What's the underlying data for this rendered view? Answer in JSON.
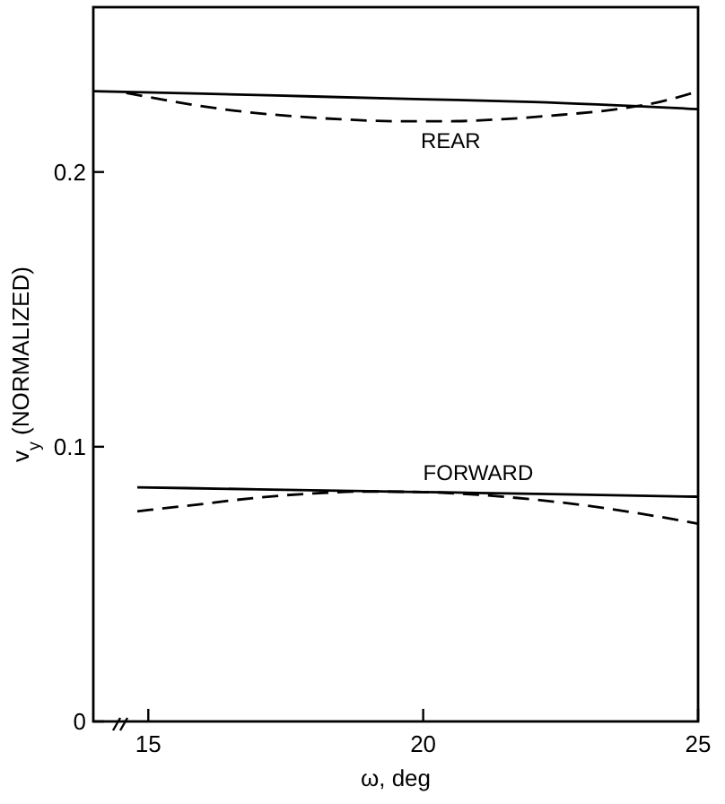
{
  "chart_data": {
    "type": "line",
    "xlabel": "ω, deg",
    "ylabel": "v$_{y}$ (NORMALIZED)",
    "xlim": [
      14,
      25
    ],
    "ylim": [
      0,
      0.26
    ],
    "xticks": [
      15,
      20,
      25
    ],
    "yticks": [
      0,
      0.1,
      0.2
    ],
    "grid": false,
    "marker": "none",
    "series": [
      {
        "color": "#000000",
        "line_style": "solid",
        "x": [
          14,
          16,
          18,
          20,
          22,
          25
        ],
        "values": [
          0.2294,
          0.2285,
          0.2275,
          0.2265,
          0.2255,
          0.2229
        ]
      },
      {
        "name": "REAR",
        "color": "#000000",
        "line_style": "dashed",
        "x": [
          14.6,
          15.5,
          16.5,
          17.5,
          18.5,
          19.5,
          20.5,
          21.5,
          22.5,
          23.5,
          24.3,
          25
        ],
        "values": [
          0.2288,
          0.2255,
          0.2225,
          0.2205,
          0.2192,
          0.2185,
          0.2185,
          0.2193,
          0.2208,
          0.2228,
          0.2255,
          0.2294
        ]
      },
      {
        "name": "FORWARD",
        "color": "#000000",
        "line_style": "solid",
        "x": [
          14.8,
          17,
          19,
          21,
          23,
          25
        ],
        "values": [
          0.0852,
          0.0845,
          0.0838,
          0.0832,
          0.0825,
          0.0818
        ]
      },
      {
        "color": "#000000",
        "line_style": "dashed",
        "x": [
          14.8,
          16,
          17,
          18,
          19,
          20,
          21,
          22,
          23,
          24,
          25
        ],
        "values": [
          0.0765,
          0.0792,
          0.0815,
          0.083,
          0.0837,
          0.0835,
          0.0825,
          0.0808,
          0.0785,
          0.0755,
          0.072
        ]
      }
    ]
  }
}
